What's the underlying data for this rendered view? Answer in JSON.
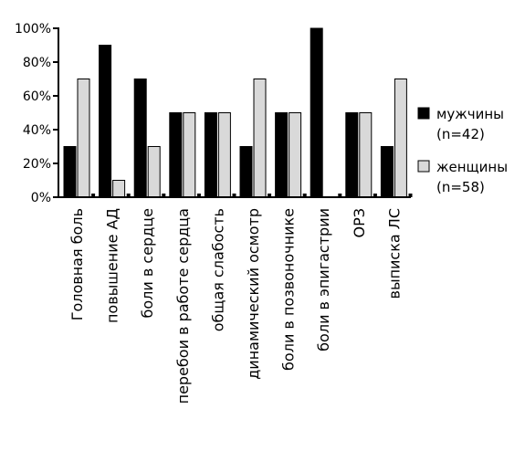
{
  "chart_data": {
    "type": "bar",
    "categories": [
      "Головная боль",
      "повышение АД",
      "боли в сердце",
      "перебои в работе сердца",
      "общая слабость",
      "динамический осмотр",
      "боли в позвоночнике",
      "боли в эпигастрии",
      "ОРЗ",
      "выписка ЛС"
    ],
    "series": [
      {
        "name": "мужчины",
        "extra": "(n=42)",
        "color": "#000000",
        "values": [
          30,
          90,
          70,
          50,
          50,
          30,
          50,
          100,
          50,
          30
        ]
      },
      {
        "name": "женщины",
        "extra": "(n=58)",
        "color": "#d9d9d9",
        "values": [
          70,
          10,
          30,
          50,
          50,
          70,
          50,
          0,
          50,
          70
        ]
      }
    ],
    "ylim": [
      0,
      100
    ],
    "yticks": [
      "0%",
      "20%",
      "40%",
      "60%",
      "80%",
      "100%"
    ],
    "title": "",
    "xlabel": "",
    "ylabel": "",
    "legend": "right",
    "grid": false
  }
}
